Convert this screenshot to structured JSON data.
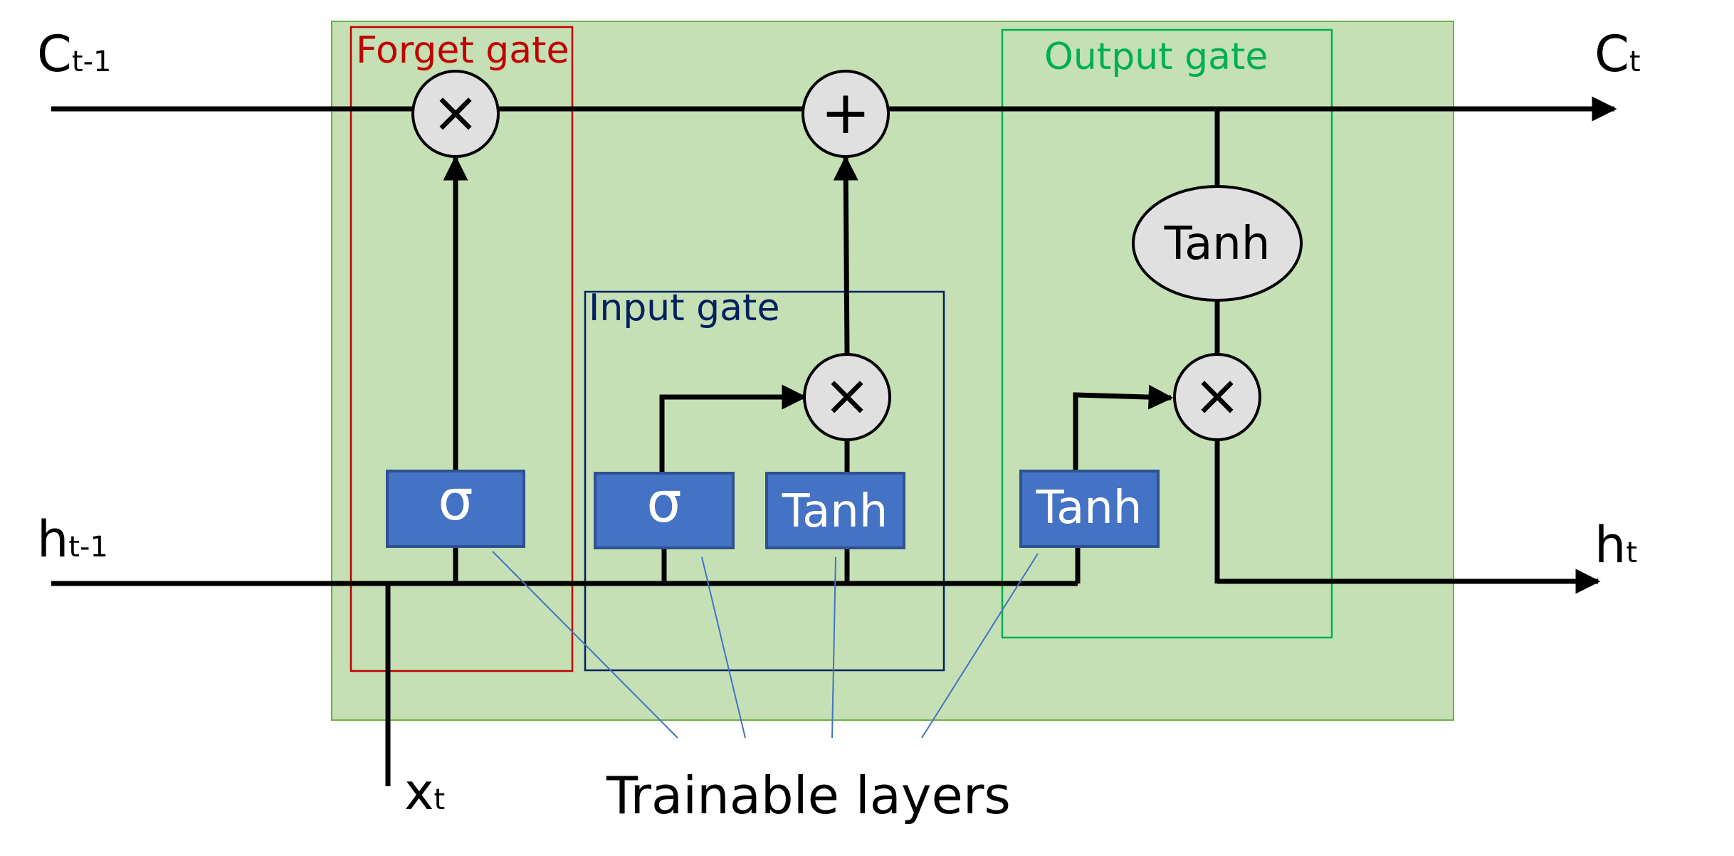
{
  "labels": {
    "c_prev_main": "C",
    "c_prev_sub": "t-1",
    "c_next_main": "C",
    "c_next_sub": "t",
    "h_prev_main": "h",
    "h_prev_sub": "t-1",
    "h_next_main": "h",
    "h_next_sub": "t",
    "x_main": "x",
    "x_sub": "t"
  },
  "gates": {
    "forget": "Forget gate",
    "input": "Input gate",
    "output": "Output gate"
  },
  "ops": {
    "multiply": "×",
    "add": "+"
  },
  "layers": {
    "sigma": "σ",
    "tanh": "Tanh"
  },
  "annotation": "Trainable layers",
  "colors": {
    "cell_fill": "#c5e0b4",
    "cell_border": "#70ad47",
    "forget_gate": "#c00000",
    "input_gate": "#002060",
    "output_gate": "#00b050",
    "layer_fill": "#4472c4",
    "layer_border": "#2f528f",
    "op_fill": "#e0e0e0",
    "callout_line": "#4472c4"
  }
}
